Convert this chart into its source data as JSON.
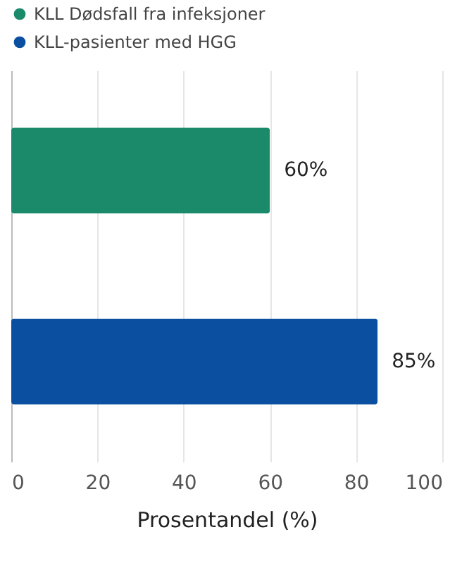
{
  "chart_data": {
    "type": "bar",
    "orientation": "horizontal",
    "categories": [
      null,
      null
    ],
    "series": [
      {
        "name": "KLL Dødsfall fra infeksjoner",
        "color": "#1a8a6b",
        "values": [
          60,
          null
        ],
        "value_labels": [
          "60%",
          null
        ]
      },
      {
        "name": "KLL-pasienter med HGG",
        "color": "#0a4fa0",
        "values": [
          null,
          85
        ],
        "value_labels": [
          null,
          "85%"
        ]
      }
    ],
    "xlabel": "Prosentandel (%)",
    "xlim": [
      0,
      100
    ],
    "xticks": [
      0,
      20,
      40,
      60,
      80,
      100
    ],
    "grid": "x",
    "legend": "top left",
    "tick_labels": "x"
  }
}
